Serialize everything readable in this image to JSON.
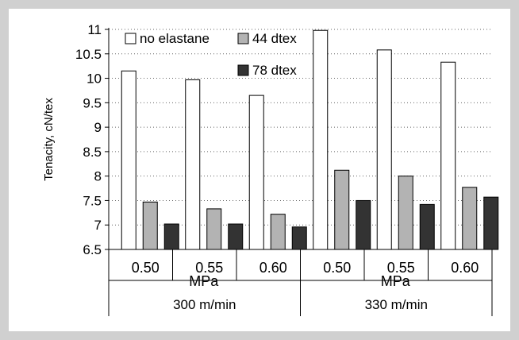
{
  "chart_data": {
    "type": "bar",
    "ylabel": "Tenacity, cN/tex",
    "ylim": [
      6.5,
      11
    ],
    "ytick_step": 0.5,
    "yticks": [
      "6.5",
      "7",
      "7.5",
      "8",
      "8.5",
      "9",
      "9.5",
      "10",
      "10.5",
      "11"
    ],
    "grid": "horizontal dotted",
    "legend_placement": "top-left",
    "categories": [
      "0.50",
      "0.55",
      "0.60",
      "0.50",
      "0.55",
      "0.60"
    ],
    "category_unit": "MPa",
    "groups": [
      {
        "label": "300 m/min",
        "categories": [
          0,
          1,
          2
        ]
      },
      {
        "label": "330 m/min",
        "categories": [
          3,
          4,
          5
        ]
      }
    ],
    "series": [
      {
        "name": "no elastane",
        "color": "#ffffff",
        "values": [
          10.15,
          9.97,
          9.65,
          10.98,
          10.58,
          10.33
        ]
      },
      {
        "name": "44 dtex",
        "color": "#b3b3b3",
        "values": [
          7.47,
          7.33,
          7.22,
          8.12,
          8.0,
          7.77
        ]
      },
      {
        "name": "78 dtex",
        "color": "#333333",
        "values": [
          7.02,
          7.02,
          6.96,
          7.5,
          7.42,
          7.57
        ]
      }
    ]
  }
}
